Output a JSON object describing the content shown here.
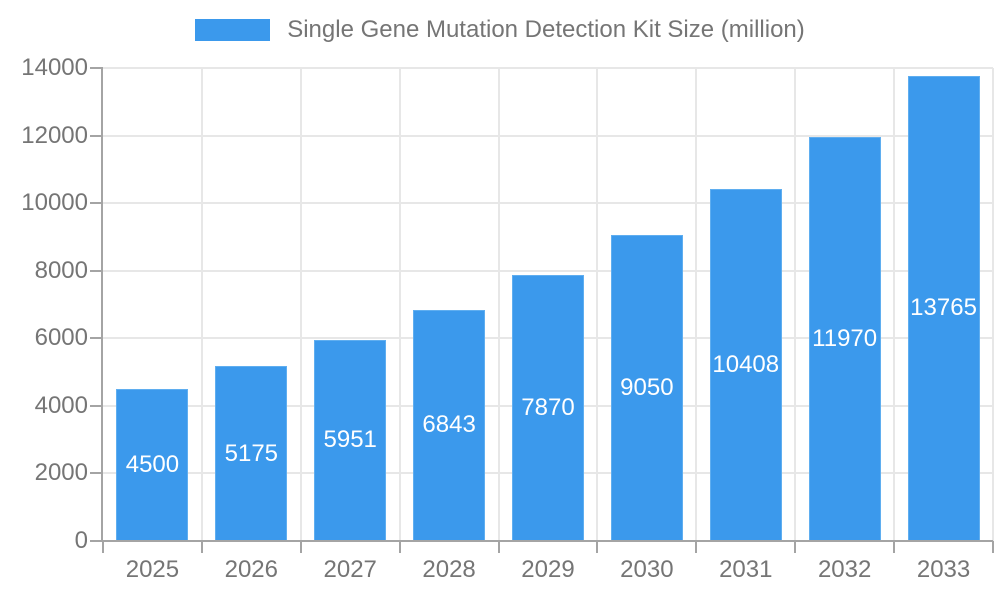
{
  "chart_data": {
    "type": "bar",
    "title": "Single Gene Mutation Detection Kit Size (million)",
    "series": [
      {
        "name": "Single Gene Mutation Detection Kit Size (million)",
        "values": [
          4500,
          5175,
          5951,
          6843,
          7870,
          9050,
          10408,
          11970,
          13765
        ]
      }
    ],
    "categories": [
      "2025",
      "2026",
      "2027",
      "2028",
      "2029",
      "2030",
      "2031",
      "2032",
      "2033"
    ],
    "xlabel": "",
    "ylabel": "",
    "ylim": [
      0,
      14000
    ],
    "yticks": [
      0,
      2000,
      4000,
      6000,
      8000,
      10000,
      12000,
      14000
    ],
    "grid": true,
    "legend_position": "top-center",
    "value_labels": "inside-bar-centered-white",
    "colors": {
      "bar": "#3B99EC",
      "bar_edge": "#5FAEF0",
      "grid_line": "#E7E7E7",
      "axis_line": "#A4A4A4",
      "tick_label": "#757575",
      "bar_value_label": "#FFFFFF",
      "background": "#FFFFFF"
    }
  }
}
